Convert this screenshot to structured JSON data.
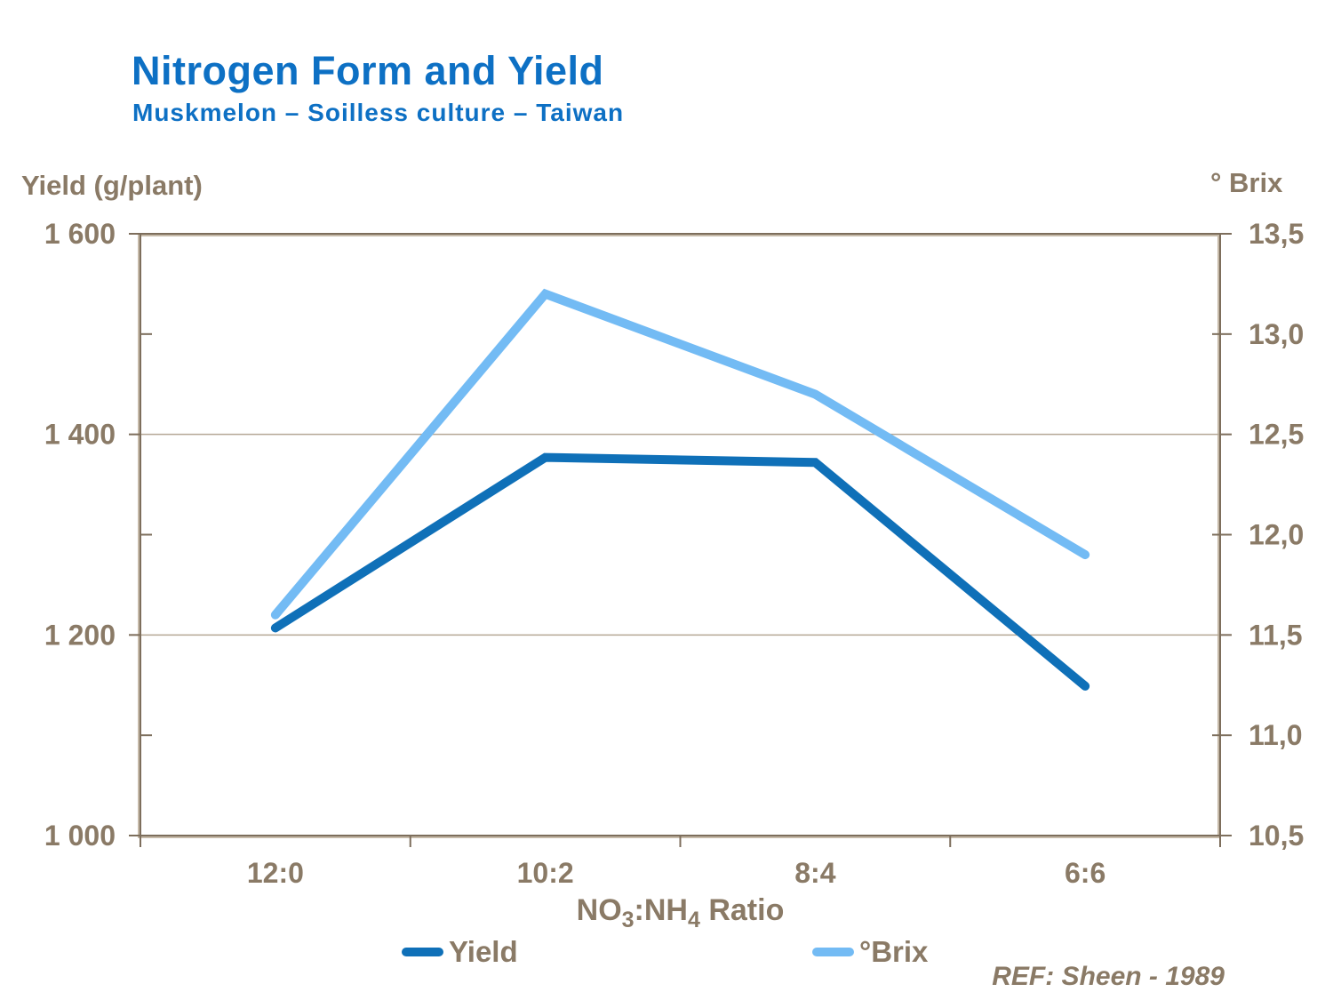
{
  "title": "Nitrogen Form and Yield",
  "subtitle": "Muskmelon – Soilless culture – Taiwan",
  "reference": "REF: Sheen - 1989",
  "colors": {
    "title_blue": "#0d70c4",
    "text_taupe": "#8a7a66",
    "gridline": "#b5a795",
    "border_dark": "#7d6e5c",
    "border_light": "#c6baa9",
    "yield_line": "#0f70b8",
    "brix_line": "#73bbf4"
  },
  "left_axis": {
    "title": "Yield (g/plant)",
    "range": [
      1000,
      1600
    ],
    "major_ticks": [
      {
        "value": 1600,
        "label": "1 600"
      },
      {
        "value": 1400,
        "label": "1 400"
      },
      {
        "value": 1200,
        "label": "1 200"
      },
      {
        "value": 1000,
        "label": "1 000"
      }
    ],
    "minor_ticks": [
      1500,
      1300,
      1100
    ],
    "gridline_values": [
      1400,
      1200
    ]
  },
  "right_axis": {
    "title": "° Brix",
    "range": [
      10.5,
      13.5
    ],
    "major_ticks": [
      {
        "value": 13.5,
        "label": "13,5"
      },
      {
        "value": 13.0,
        "label": "13,0"
      },
      {
        "value": 12.5,
        "label": "12,5"
      },
      {
        "value": 12.0,
        "label": "12,0"
      },
      {
        "value": 11.5,
        "label": "11,5"
      },
      {
        "value": 11.0,
        "label": "11,0"
      },
      {
        "value": 10.5,
        "label": "10,5"
      }
    ]
  },
  "x_axis": {
    "title_plain": "NO3:NH4 Ratio",
    "title_parts": [
      {
        "text": "NO"
      },
      {
        "text": "3",
        "sub": true
      },
      {
        "text": ":NH"
      },
      {
        "text": "4",
        "sub": true
      },
      {
        "text": " Ratio"
      }
    ],
    "categories": [
      "12:0",
      "10:2",
      "8:4",
      "6:6"
    ]
  },
  "legend": {
    "items": [
      {
        "label": "Yield"
      },
      {
        "label": "°Brix"
      }
    ]
  },
  "chart_data": {
    "type": "line",
    "title": "Nitrogen Form and Yield",
    "subtitle": "Muskmelon – Soilless culture – Taiwan",
    "categories": [
      "12:0",
      "10:2",
      "8:4",
      "6:6"
    ],
    "series": [
      {
        "name": "Yield",
        "axis": "left",
        "color": "#0f70b8",
        "values": [
          1207,
          1377,
          1372,
          1149
        ]
      },
      {
        "name": "°Brix",
        "axis": "right",
        "color": "#73bbf4",
        "values": [
          11.6,
          13.2,
          12.7,
          11.9
        ]
      }
    ],
    "xlabel": "NO3:NH4 Ratio",
    "ylabel_left": "Yield (g/plant)",
    "ylabel_right": "° Brix",
    "ylim_left": [
      1000,
      1600
    ],
    "ylim_right": [
      10.5,
      13.5
    ],
    "grid": "horizontal gridlines at left-axis 1400 and 1200 (= right-axis 12,5 and 11,5)",
    "legend_position": "bottom",
    "reference": "REF: Sheen - 1989"
  }
}
